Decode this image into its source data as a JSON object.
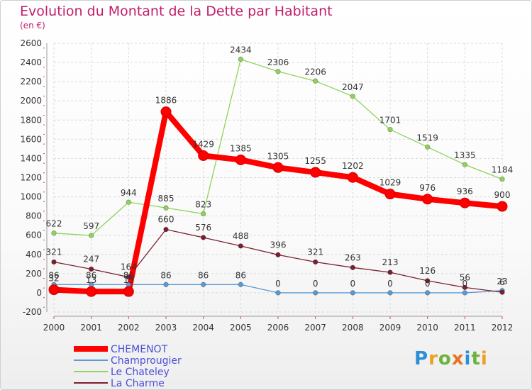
{
  "header": {
    "title": "Evolution du Montant de la Dette par Habitant",
    "subtitle": "(en €)"
  },
  "logo": {
    "text": "Proxiti",
    "letter_colors": [
      "#2a8fd6",
      "#e8a21f",
      "#6cb33e",
      "#e8731f",
      "#2a8fd6",
      "#6cb33e",
      "#e8a21f"
    ]
  },
  "chart_data": {
    "type": "line",
    "title": "Evolution du Montant de la Dette par Habitant",
    "subtitle": "(en €)",
    "xlabel": "",
    "ylabel": "",
    "x": [
      "2000",
      "2001",
      "2002",
      "2003",
      "2004",
      "2005",
      "2006",
      "2007",
      "2008",
      "2009",
      "2010",
      "2011",
      "2012"
    ],
    "yticks": [
      "-200",
      "0",
      "200",
      "400",
      "600",
      "800",
      "1000",
      "1200",
      "1400",
      "1600",
      "1800",
      "2000",
      "2200",
      "2400",
      "2600"
    ],
    "ylim": [
      -200,
      2600
    ],
    "grid": true,
    "legend": "bottom-left",
    "series": [
      {
        "name": "CHEMENOT",
        "color": "#ff0000",
        "values": [
          32,
          13,
          13,
          1886,
          1429,
          1385,
          1305,
          1255,
          1202,
          1029,
          976,
          936,
          900
        ],
        "labels": [
          "32",
          "13",
          "13",
          "1886",
          "1429",
          "1385",
          "1305",
          "1255",
          "1202",
          "1029",
          "976",
          "936",
          "900"
        ]
      },
      {
        "name": "Champrougier",
        "color": "#5b9bd5",
        "values": [
          86,
          86,
          86,
          86,
          86,
          86,
          0,
          0,
          0,
          0,
          0,
          0,
          23
        ],
        "labels": [
          "86",
          "86",
          "86",
          "86",
          "86",
          "86",
          "0",
          "0",
          "0",
          "0",
          "0",
          "0",
          "23"
        ]
      },
      {
        "name": "Le Chateley",
        "color": "#8fd45a",
        "values": [
          622,
          597,
          944,
          885,
          823,
          2434,
          2306,
          2206,
          2047,
          1701,
          1519,
          1335,
          1184
        ],
        "labels": [
          "622",
          "597",
          "944",
          "885",
          "823",
          "2434",
          "2306",
          "2206",
          "2047",
          "1701",
          "1519",
          "1335",
          "1184"
        ]
      },
      {
        "name": "La Charme",
        "color": "#7b2030",
        "values": [
          321,
          247,
          164,
          660,
          576,
          488,
          396,
          321,
          263,
          213,
          126,
          56,
          6
        ],
        "labels": [
          "321",
          "247",
          "164",
          "660",
          "576",
          "488",
          "396",
          "321",
          "263",
          "213",
          "126",
          "56",
          "6"
        ]
      }
    ]
  }
}
